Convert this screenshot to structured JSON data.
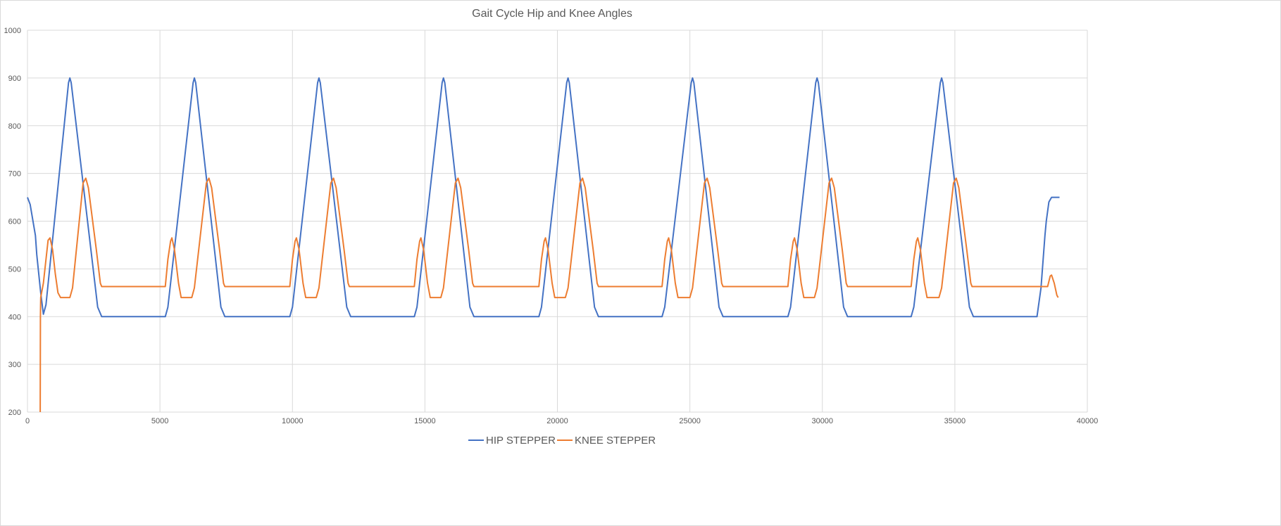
{
  "chart_data": {
    "type": "line",
    "title": "Gait Cycle Hip and Knee Angles",
    "xlabel": "",
    "ylabel": "",
    "xlim": [
      0,
      40000
    ],
    "ylim": [
      200,
      1000
    ],
    "x_ticks": [
      0,
      5000,
      10000,
      15000,
      20000,
      25000,
      30000,
      35000,
      40000
    ],
    "y_ticks": [
      200,
      300,
      400,
      500,
      600,
      700,
      800,
      900,
      1000
    ],
    "grid": true,
    "legend_position": "bottom",
    "series": [
      {
        "name": "HIP STEPPER",
        "color": "#4472C4",
        "points": [
          [
            0,
            650
          ],
          [
            100,
            635
          ],
          [
            300,
            570
          ],
          [
            350,
            530
          ],
          [
            500,
            450
          ],
          [
            600,
            405
          ],
          [
            700,
            425
          ],
          [
            1550,
            890
          ],
          [
            1600,
            900
          ],
          [
            1650,
            890
          ],
          [
            2650,
            420
          ],
          [
            2800,
            400
          ],
          [
            5200,
            400
          ],
          [
            5300,
            420
          ],
          [
            6250,
            890
          ],
          [
            6300,
            900
          ],
          [
            6350,
            890
          ],
          [
            7300,
            420
          ],
          [
            7450,
            400
          ],
          [
            9900,
            400
          ],
          [
            10000,
            420
          ],
          [
            10950,
            890
          ],
          [
            11000,
            900
          ],
          [
            11050,
            890
          ],
          [
            12050,
            420
          ],
          [
            12200,
            400
          ],
          [
            14600,
            400
          ],
          [
            14700,
            420
          ],
          [
            15650,
            890
          ],
          [
            15700,
            900
          ],
          [
            15750,
            890
          ],
          [
            16700,
            420
          ],
          [
            16850,
            400
          ],
          [
            19300,
            400
          ],
          [
            19400,
            420
          ],
          [
            20350,
            890
          ],
          [
            20400,
            900
          ],
          [
            20450,
            890
          ],
          [
            21400,
            420
          ],
          [
            21550,
            400
          ],
          [
            23950,
            400
          ],
          [
            24050,
            420
          ],
          [
            25050,
            890
          ],
          [
            25100,
            900
          ],
          [
            25150,
            890
          ],
          [
            26100,
            420
          ],
          [
            26250,
            400
          ],
          [
            28700,
            400
          ],
          [
            28800,
            420
          ],
          [
            29750,
            890
          ],
          [
            29800,
            900
          ],
          [
            29850,
            890
          ],
          [
            30800,
            420
          ],
          [
            30950,
            400
          ],
          [
            33350,
            400
          ],
          [
            33450,
            420
          ],
          [
            34450,
            890
          ],
          [
            34500,
            900
          ],
          [
            34550,
            890
          ],
          [
            35550,
            420
          ],
          [
            35700,
            400
          ],
          [
            38100,
            400
          ],
          [
            38250,
            460
          ],
          [
            38400,
            570
          ],
          [
            38450,
            600
          ],
          [
            38550,
            640
          ],
          [
            38650,
            650
          ],
          [
            38950,
            650
          ]
        ]
      },
      {
        "name": "KNEE STEPPER",
        "color": "#ED7D31",
        "points": [
          [
            480,
            200
          ],
          [
            490,
            400
          ],
          [
            500,
            440
          ],
          [
            600,
            470
          ],
          [
            700,
            520
          ],
          [
            780,
            560
          ],
          [
            850,
            565
          ],
          [
            950,
            540
          ],
          [
            1050,
            490
          ],
          [
            1150,
            450
          ],
          [
            1250,
            440
          ],
          [
            1600,
            440
          ],
          [
            1700,
            460
          ],
          [
            2100,
            680
          ],
          [
            2200,
            690
          ],
          [
            2300,
            670
          ],
          [
            2600,
            540
          ],
          [
            2750,
            470
          ],
          [
            2800,
            463
          ],
          [
            5200,
            463
          ],
          [
            5300,
            520
          ],
          [
            5400,
            558
          ],
          [
            5450,
            565
          ],
          [
            5550,
            540
          ],
          [
            5700,
            470
          ],
          [
            5800,
            440
          ],
          [
            6200,
            440
          ],
          [
            6300,
            460
          ],
          [
            6750,
            680
          ],
          [
            6850,
            690
          ],
          [
            6950,
            670
          ],
          [
            7250,
            540
          ],
          [
            7400,
            470
          ],
          [
            7450,
            463
          ],
          [
            9900,
            463
          ],
          [
            10000,
            520
          ],
          [
            10100,
            558
          ],
          [
            10150,
            565
          ],
          [
            10250,
            540
          ],
          [
            10400,
            470
          ],
          [
            10500,
            440
          ],
          [
            10900,
            440
          ],
          [
            11000,
            460
          ],
          [
            11450,
            680
          ],
          [
            11550,
            690
          ],
          [
            11650,
            670
          ],
          [
            11950,
            540
          ],
          [
            12100,
            470
          ],
          [
            12150,
            463
          ],
          [
            14600,
            463
          ],
          [
            14700,
            520
          ],
          [
            14800,
            558
          ],
          [
            14850,
            565
          ],
          [
            14950,
            540
          ],
          [
            15100,
            470
          ],
          [
            15200,
            440
          ],
          [
            15600,
            440
          ],
          [
            15700,
            460
          ],
          [
            16150,
            680
          ],
          [
            16250,
            690
          ],
          [
            16350,
            670
          ],
          [
            16650,
            540
          ],
          [
            16800,
            470
          ],
          [
            16850,
            463
          ],
          [
            19300,
            463
          ],
          [
            19400,
            520
          ],
          [
            19500,
            558
          ],
          [
            19550,
            565
          ],
          [
            19650,
            540
          ],
          [
            19800,
            470
          ],
          [
            19900,
            440
          ],
          [
            20300,
            440
          ],
          [
            20400,
            460
          ],
          [
            20850,
            680
          ],
          [
            20950,
            690
          ],
          [
            21050,
            670
          ],
          [
            21350,
            540
          ],
          [
            21500,
            470
          ],
          [
            21550,
            463
          ],
          [
            23950,
            463
          ],
          [
            24050,
            520
          ],
          [
            24150,
            558
          ],
          [
            24200,
            565
          ],
          [
            24300,
            540
          ],
          [
            24450,
            470
          ],
          [
            24550,
            440
          ],
          [
            25000,
            440
          ],
          [
            25100,
            460
          ],
          [
            25550,
            680
          ],
          [
            25650,
            690
          ],
          [
            25750,
            670
          ],
          [
            26050,
            540
          ],
          [
            26200,
            470
          ],
          [
            26250,
            463
          ],
          [
            28700,
            463
          ],
          [
            28800,
            520
          ],
          [
            28900,
            558
          ],
          [
            28950,
            565
          ],
          [
            29050,
            540
          ],
          [
            29200,
            470
          ],
          [
            29300,
            440
          ],
          [
            29700,
            440
          ],
          [
            29800,
            460
          ],
          [
            30250,
            680
          ],
          [
            30350,
            690
          ],
          [
            30450,
            670
          ],
          [
            30750,
            540
          ],
          [
            30900,
            470
          ],
          [
            30950,
            463
          ],
          [
            33350,
            463
          ],
          [
            33450,
            520
          ],
          [
            33550,
            558
          ],
          [
            33600,
            565
          ],
          [
            33700,
            540
          ],
          [
            33850,
            470
          ],
          [
            33950,
            440
          ],
          [
            34400,
            440
          ],
          [
            34500,
            460
          ],
          [
            34950,
            680
          ],
          [
            35050,
            690
          ],
          [
            35150,
            670
          ],
          [
            35450,
            540
          ],
          [
            35600,
            470
          ],
          [
            35650,
            463
          ],
          [
            38100,
            463
          ],
          [
            38400,
            463
          ],
          [
            38500,
            463
          ],
          [
            38600,
            485
          ],
          [
            38650,
            487
          ],
          [
            38750,
            470
          ],
          [
            38850,
            445
          ],
          [
            38900,
            440
          ]
        ]
      }
    ]
  }
}
